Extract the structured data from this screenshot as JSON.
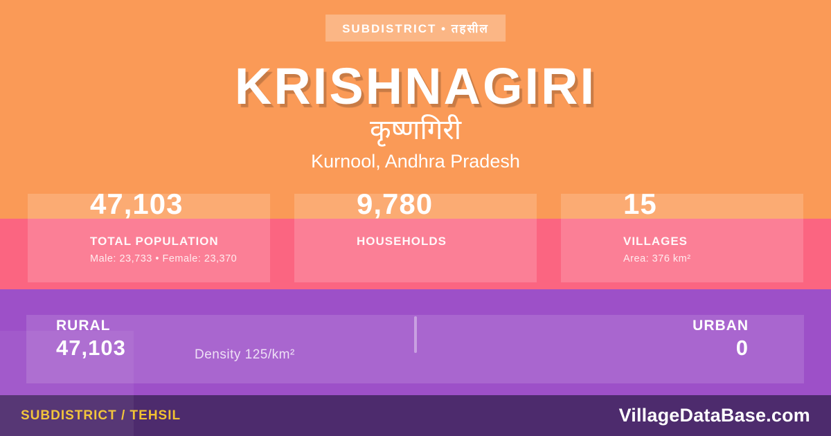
{
  "badge": {
    "label": "SUBDISTRICT • तहसील"
  },
  "header": {
    "title": "KRISHNAGIRI",
    "native_title": "कृष्णगिरी",
    "location": "Kurnool, Andhra Pradesh"
  },
  "stats": [
    {
      "value": "47,103",
      "label": "TOTAL POPULATION",
      "sub": "Male: 23,733 • Female: 23,370"
    },
    {
      "value": "9,780",
      "label": "HOUSEHOLDS",
      "sub": ""
    },
    {
      "value": "15",
      "label": "VILLAGES",
      "sub": "Area: 376 km²"
    }
  ],
  "split": {
    "rural_label": "RURAL",
    "rural_value": "47,103",
    "density": "Density 125/km²",
    "urban_label": "URBAN",
    "urban_value": "0"
  },
  "footer": {
    "type_label": "SUBDISTRICT / TEHSIL",
    "brand": "VillageDataBase.com"
  },
  "colors": {
    "background_orange": "#FA9A57",
    "band_pink": "#FB6581",
    "band_purple": "#9D50C8",
    "footer_purple": "#4D2B6D",
    "accent_yellow": "#F2C230",
    "text_white": "#FFFFFF"
  }
}
